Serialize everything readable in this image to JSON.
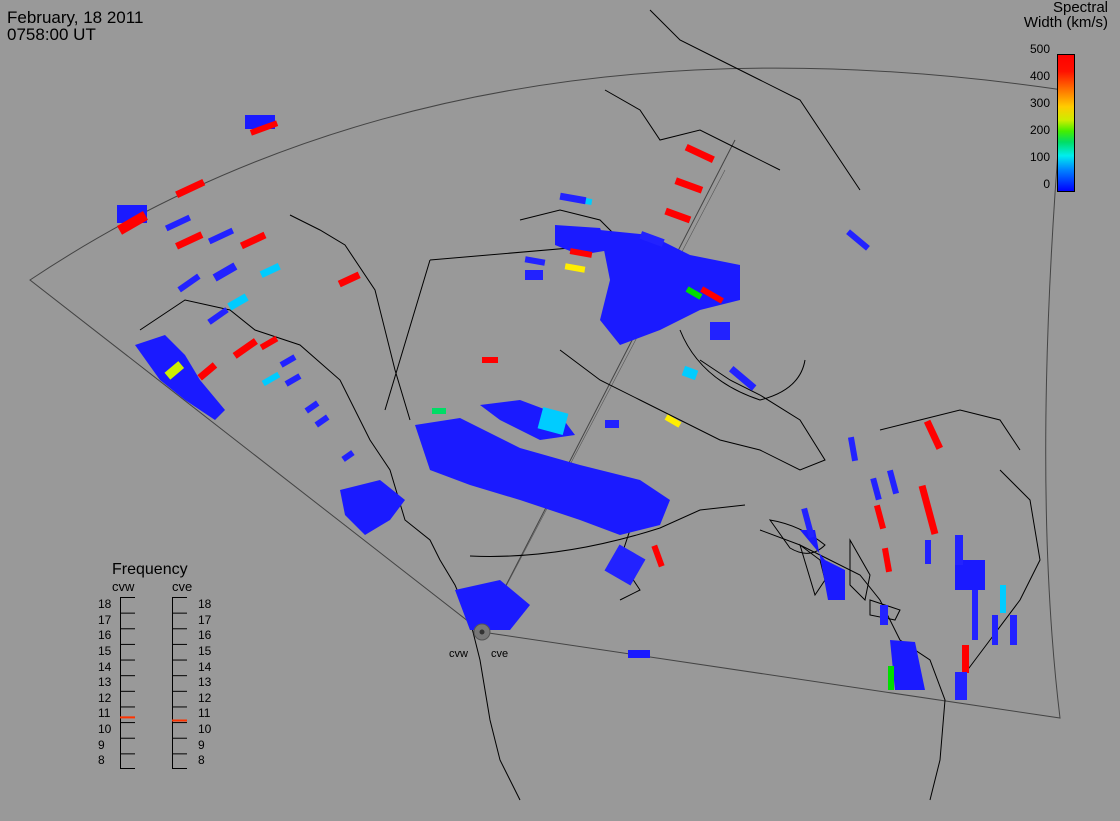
{
  "header": {
    "date": "February, 18 2011",
    "time": "0758:00 UT"
  },
  "colorbar": {
    "title_line1": "Spectral",
    "title_line2": "Width (km/s)",
    "ticks": [
      "500",
      "400",
      "300",
      "200",
      "100",
      "0"
    ],
    "colors": {
      "low": "#0000ff",
      "mid": "#00eeee",
      "green": "#00dd00",
      "yellow": "#ffee00",
      "high": "#ff0000"
    }
  },
  "frequency": {
    "title": "Frequency",
    "radars": [
      "cvw",
      "cve"
    ],
    "scale": [
      "18",
      "17",
      "16",
      "15",
      "14",
      "13",
      "12",
      "11",
      "10",
      "9",
      "8"
    ],
    "cvw_value": 10.8,
    "cve_value": 10.6,
    "marker_color": "#ff3300"
  },
  "radar_site_labels": {
    "west": "cvw",
    "east": "cve"
  },
  "colors": {
    "background": "#999999",
    "coast": "#000000",
    "echo_low": "#1a1aff"
  }
}
